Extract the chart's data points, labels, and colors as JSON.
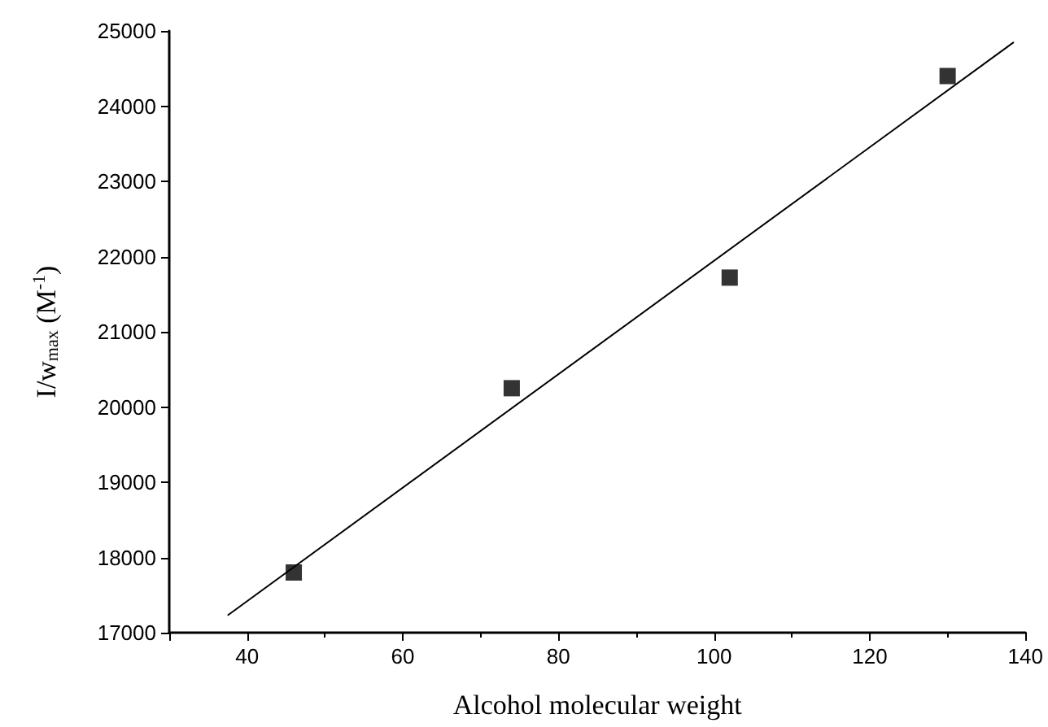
{
  "chart_data": {
    "type": "scatter",
    "xlabel": "Alcohol molecular weight",
    "ylabel": "I/w$_{max}$ (M$^{-1}$)",
    "xlim": [
      30,
      140
    ],
    "xticks": [
      {
        "value": 30,
        "label": null
      },
      40,
      60,
      80,
      100,
      120,
      140
    ],
    "ylim": [
      17000,
      25000
    ],
    "yticks": [
      17000,
      18000,
      19000,
      20000,
      21000,
      22000,
      23000,
      24000,
      25000
    ],
    "grid": false,
    "series": [
      {
        "marker": "square",
        "color": "#000000",
        "x": [
          46,
          74,
          102,
          130
        ],
        "values": [
          17800,
          20250,
          21720,
          24400
        ]
      },
      {
        "type": "line",
        "marker": "none",
        "line_style": "solid",
        "color": "#000000",
        "x": [
          37.5,
          138.5
        ],
        "values": [
          17230,
          24850
        ]
      }
    ]
  }
}
